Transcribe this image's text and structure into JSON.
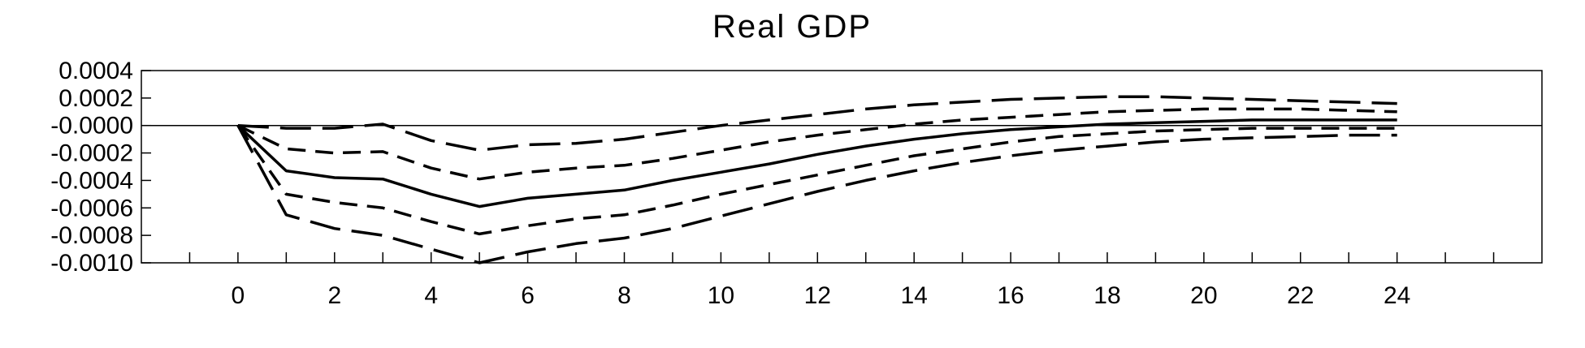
{
  "chart_data": {
    "type": "line",
    "title": "Real GDP",
    "xlabel": "",
    "ylabel": "",
    "xlim": [
      -2,
      27
    ],
    "ylim": [
      -0.001,
      0.0004
    ],
    "x_ticks": [
      0,
      2,
      4,
      6,
      8,
      10,
      12,
      14,
      16,
      18,
      20,
      22,
      24
    ],
    "x_tick_labels": [
      "0",
      "2",
      "4",
      "6",
      "8",
      "10",
      "12",
      "14",
      "16",
      "18",
      "20",
      "22",
      "24"
    ],
    "y_ticks": [
      0.0004,
      0.0002,
      0.0,
      -0.0002,
      -0.0004,
      -0.0006,
      -0.0008,
      -0.001
    ],
    "y_tick_labels": [
      "0.0004",
      "0.0002",
      "-0.0000",
      "-0.0002",
      "-0.0004",
      "-0.0006",
      "-0.0008",
      "-0.0010"
    ],
    "zero_line": true,
    "grid": false,
    "legend": "none",
    "x": [
      0,
      1,
      2,
      3,
      4,
      5,
      6,
      7,
      8,
      9,
      10,
      11,
      12,
      13,
      14,
      15,
      16,
      17,
      18,
      19,
      20,
      21,
      22,
      23,
      24
    ],
    "series": [
      {
        "style": "long-dash",
        "values": [
          0,
          -0.00065,
          -0.00075,
          -0.0008,
          -0.0009,
          -0.001,
          -0.00092,
          -0.00086,
          -0.00082,
          -0.00075,
          -0.00066,
          -0.00057,
          -0.00048,
          -0.0004,
          -0.00033,
          -0.00027,
          -0.00022,
          -0.00018,
          -0.00015,
          -0.00012,
          -0.0001,
          -9e-05,
          -8e-05,
          -7e-05,
          -7e-05
        ]
      },
      {
        "style": "short-dash",
        "values": [
          0,
          -0.0005,
          -0.00056,
          -0.0006,
          -0.0007,
          -0.00079,
          -0.00073,
          -0.00068,
          -0.00065,
          -0.00058,
          -0.0005,
          -0.00043,
          -0.00036,
          -0.00029,
          -0.00022,
          -0.00017,
          -0.00012,
          -8e-05,
          -6e-05,
          -4e-05,
          -3e-05,
          -2e-05,
          -2e-05,
          -2e-05,
          -2e-05
        ]
      },
      {
        "style": "solid",
        "values": [
          0,
          -0.00033,
          -0.00038,
          -0.00039,
          -0.0005,
          -0.00059,
          -0.00053,
          -0.0005,
          -0.00047,
          -0.0004,
          -0.00034,
          -0.00028,
          -0.00021,
          -0.00015,
          -0.0001,
          -6e-05,
          -3e-05,
          -1e-05,
          1e-05,
          2e-05,
          3e-05,
          4e-05,
          4e-05,
          4e-05,
          4e-05
        ]
      },
      {
        "style": "short-dash",
        "values": [
          0,
          -0.00017,
          -0.0002,
          -0.00019,
          -0.00031,
          -0.00039,
          -0.00034,
          -0.00031,
          -0.00029,
          -0.00024,
          -0.00018,
          -0.00012,
          -7e-05,
          -3e-05,
          1e-05,
          4e-05,
          6e-05,
          8e-05,
          0.0001,
          0.00011,
          0.00012,
          0.00012,
          0.00012,
          0.00011,
          0.0001
        ]
      },
      {
        "style": "long-dash",
        "values": [
          0,
          -2e-05,
          -2e-05,
          1e-05,
          -0.00011,
          -0.00018,
          -0.00014,
          -0.00013,
          -0.0001,
          -5e-05,
          0.0,
          4e-05,
          8e-05,
          0.00012,
          0.00015,
          0.00017,
          0.00019,
          0.0002,
          0.00021,
          0.00021,
          0.0002,
          0.00019,
          0.00018,
          0.00017,
          0.00016
        ]
      }
    ]
  }
}
